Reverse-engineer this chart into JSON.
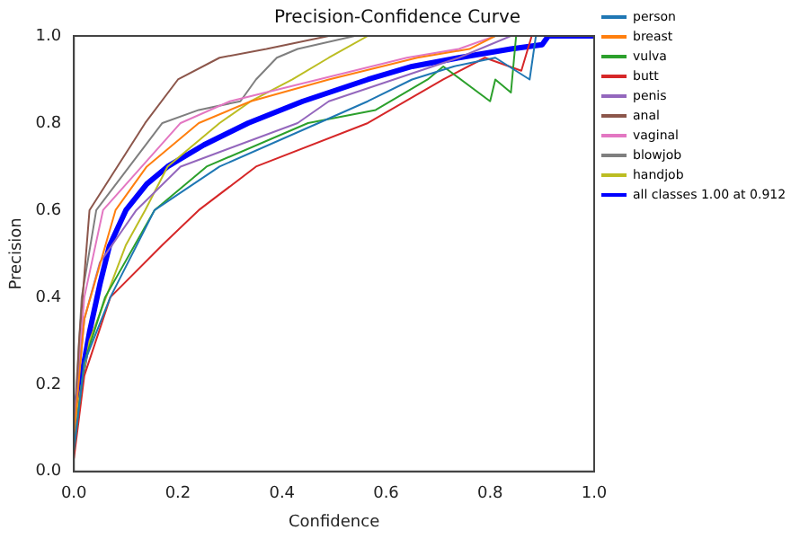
{
  "chart_data": {
    "type": "line",
    "title": "Precision-Confidence Curve",
    "xlabel": "Confidence",
    "ylabel": "Precision",
    "xlim": [
      0,
      1
    ],
    "ylim": [
      0,
      1
    ],
    "xticks": [
      {
        "value": 0,
        "label": "0.0"
      },
      {
        "value": 0.2,
        "label": "0.2"
      },
      {
        "value": 0.4,
        "label": "0.4"
      },
      {
        "value": 0.6,
        "label": "0.6"
      },
      {
        "value": 0.8,
        "label": "0.8"
      },
      {
        "value": 1,
        "label": "1.0"
      }
    ],
    "yticks": [
      {
        "value": 0,
        "label": "0.0"
      },
      {
        "value": 0.2,
        "label": "0.2"
      },
      {
        "value": 0.4,
        "label": "0.4"
      },
      {
        "value": 0.6,
        "label": "0.6"
      },
      {
        "value": 0.8,
        "label": "0.8"
      },
      {
        "value": 1,
        "label": "1.0"
      }
    ],
    "grid": false,
    "legend": "right",
    "marker": "none",
    "line_style": "solid",
    "series": [
      {
        "name": "person",
        "color": "#1f77b4",
        "x": [
          0,
          0.02,
          0.07,
          0.155,
          0.28,
          0.47,
          0.565,
          0.65,
          0.73,
          0.81,
          0.876,
          0.888
        ],
        "values": [
          0.05,
          0.25,
          0.4,
          0.6,
          0.7,
          0.8,
          0.85,
          0.9,
          0.93,
          0.95,
          0.9,
          1.0
        ]
      },
      {
        "name": "breast",
        "color": "#ff7f0e",
        "x": [
          0,
          0.02,
          0.08,
          0.14,
          0.24,
          0.34,
          0.49,
          0.66,
          0.76,
          0.81
        ],
        "values": [
          0.08,
          0.35,
          0.6,
          0.7,
          0.8,
          0.85,
          0.9,
          0.95,
          0.97,
          1.0
        ]
      },
      {
        "name": "vulva",
        "color": "#2ca02c",
        "x": [
          0,
          0.02,
          0.06,
          0.155,
          0.255,
          0.45,
          0.58,
          0.68,
          0.71,
          0.8,
          0.81,
          0.84,
          0.85
        ],
        "values": [
          0.05,
          0.25,
          0.4,
          0.6,
          0.7,
          0.8,
          0.83,
          0.9,
          0.93,
          0.85,
          0.9,
          0.87,
          1.0
        ]
      },
      {
        "name": "butt",
        "color": "#d62728",
        "x": [
          0,
          0.02,
          0.07,
          0.17,
          0.24,
          0.35,
          0.565,
          0.71,
          0.79,
          0.86,
          0.88
        ],
        "values": [
          0.03,
          0.22,
          0.4,
          0.52,
          0.6,
          0.7,
          0.8,
          0.9,
          0.95,
          0.92,
          1.0
        ]
      },
      {
        "name": "penis",
        "color": "#9467bd",
        "x": [
          0,
          0.02,
          0.05,
          0.12,
          0.205,
          0.43,
          0.49,
          0.615,
          0.74,
          0.84
        ],
        "values": [
          0.1,
          0.35,
          0.48,
          0.6,
          0.7,
          0.8,
          0.85,
          0.9,
          0.95,
          1.0
        ]
      },
      {
        "name": "anal",
        "color": "#8c564b",
        "x": [
          0,
          0.01,
          0.03,
          0.137,
          0.2,
          0.28,
          0.37,
          0.49
        ],
        "values": [
          0.05,
          0.3,
          0.6,
          0.8,
          0.9,
          0.95,
          0.97,
          1.0
        ]
      },
      {
        "name": "vaginal",
        "color": "#e377c2",
        "x": [
          0,
          0.02,
          0.056,
          0.205,
          0.3,
          0.47,
          0.64,
          0.74,
          0.81
        ],
        "values": [
          0.1,
          0.4,
          0.6,
          0.8,
          0.85,
          0.9,
          0.95,
          0.97,
          1.0
        ]
      },
      {
        "name": "blowjob",
        "color": "#7f7f7f",
        "x": [
          0,
          0.015,
          0.043,
          0.17,
          0.24,
          0.32,
          0.35,
          0.39,
          0.43,
          0.54
        ],
        "values": [
          0.1,
          0.4,
          0.6,
          0.8,
          0.83,
          0.85,
          0.9,
          0.95,
          0.97,
          1.0
        ]
      },
      {
        "name": "handjob",
        "color": "#bcbd22",
        "x": [
          0,
          0.03,
          0.1,
          0.137,
          0.18,
          0.28,
          0.34,
          0.42,
          0.49,
          0.565
        ],
        "values": [
          0.1,
          0.3,
          0.52,
          0.6,
          0.7,
          0.8,
          0.85,
          0.9,
          0.95,
          1.0
        ]
      },
      {
        "name": "all classes 1.00 at 0.912",
        "color": "#0000ff",
        "x": [
          0,
          0.012,
          0.03,
          0.05,
          0.068,
          0.1,
          0.14,
          0.18,
          0.25,
          0.335,
          0.44,
          0.565,
          0.65,
          0.74,
          0.84,
          0.9,
          0.912,
          1.0
        ],
        "values": [
          0.13,
          0.2,
          0.32,
          0.43,
          0.517,
          0.6,
          0.66,
          0.7,
          0.75,
          0.8,
          0.85,
          0.9,
          0.93,
          0.95,
          0.97,
          0.98,
          1.0,
          1.0
        ]
      }
    ]
  }
}
